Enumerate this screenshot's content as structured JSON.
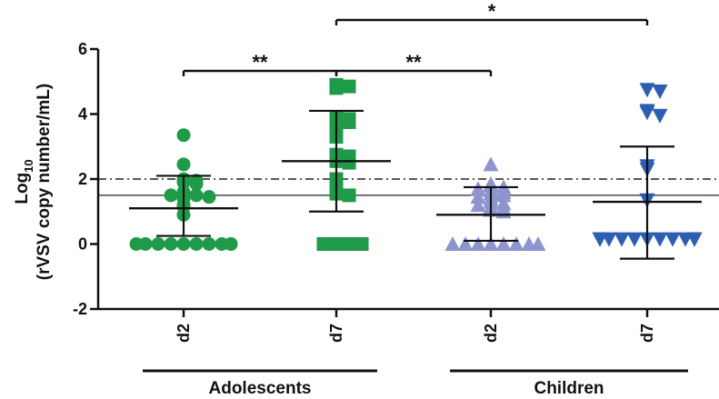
{
  "chart_data": {
    "type": "scatter",
    "ylabel_main": "Log",
    "ylabel_sub": "10",
    "ylabel_units": "(rVSV copy number/mL)",
    "ylim": [
      -2,
      6
    ],
    "yticks": [
      -2,
      0,
      2,
      4,
      6
    ],
    "reference_lines": [
      {
        "y": 2.0,
        "style": "dash-dot"
      },
      {
        "y": 1.5,
        "style": "solid"
      }
    ],
    "categories": [
      {
        "label": "d2",
        "group": "Adolescents",
        "marker": "circle",
        "color": "#1e9a48",
        "mean": 1.1,
        "sd_low": 0.25,
        "sd_high": 2.1,
        "points": [
          3.35,
          2.45,
          2.0,
          1.95,
          1.9,
          1.85,
          1.6,
          1.55,
          1.5,
          1.5,
          1.45,
          1.4,
          1.2,
          1.15,
          0.9,
          0,
          0,
          0,
          0,
          0,
          0,
          0,
          0,
          0,
          0
        ]
      },
      {
        "label": "d7",
        "group": "Adolescents",
        "marker": "square",
        "color": "#1e9a48",
        "mean": 2.55,
        "sd_low": 1.0,
        "sd_high": 4.1,
        "points": [
          4.9,
          4.85,
          4.8,
          3.9,
          3.85,
          3.8,
          3.75,
          3.5,
          3.4,
          3.3,
          2.75,
          2.7,
          2.6,
          2.55,
          2.5,
          2.0,
          1.6,
          1.55,
          1.5,
          0,
          0,
          0,
          0
        ]
      },
      {
        "label": "d2",
        "group": "Children",
        "marker": "triangle-up",
        "color": "#8d94cf",
        "mean": 0.9,
        "sd_low": 0.1,
        "sd_high": 1.75,
        "points": [
          2.45,
          1.85,
          1.8,
          1.75,
          1.7,
          1.65,
          1.6,
          1.55,
          1.5,
          1.45,
          1.4,
          1.3,
          1.25,
          1.2,
          1.15,
          1.1,
          1.05,
          1.0,
          0,
          0,
          0,
          0,
          0,
          0,
          0,
          0
        ]
      },
      {
        "label": "d7",
        "group": "Children",
        "marker": "triangle-down",
        "color": "#2c5fb4",
        "mean": 1.3,
        "sd_low": -0.45,
        "sd_high": 3.0,
        "points": [
          4.75,
          4.7,
          4.1,
          4.05,
          3.95,
          2.4,
          2.3,
          1.35,
          0.15,
          0.15,
          0.15,
          0.15,
          0.15,
          0.15,
          0.15,
          0.15,
          0.15,
          0.15,
          0.15,
          0.15
        ]
      }
    ],
    "significance": [
      {
        "from": 0,
        "to": 1,
        "label": "**",
        "level": 1
      },
      {
        "from": 1,
        "to": 2,
        "label": "**",
        "level": 1
      },
      {
        "from": 1,
        "to": 3,
        "label": "*",
        "level": 2
      }
    ],
    "groups": [
      {
        "label": "Adolescents",
        "from": 0,
        "to": 1
      },
      {
        "label": "Children",
        "from": 2,
        "to": 3
      }
    ]
  }
}
